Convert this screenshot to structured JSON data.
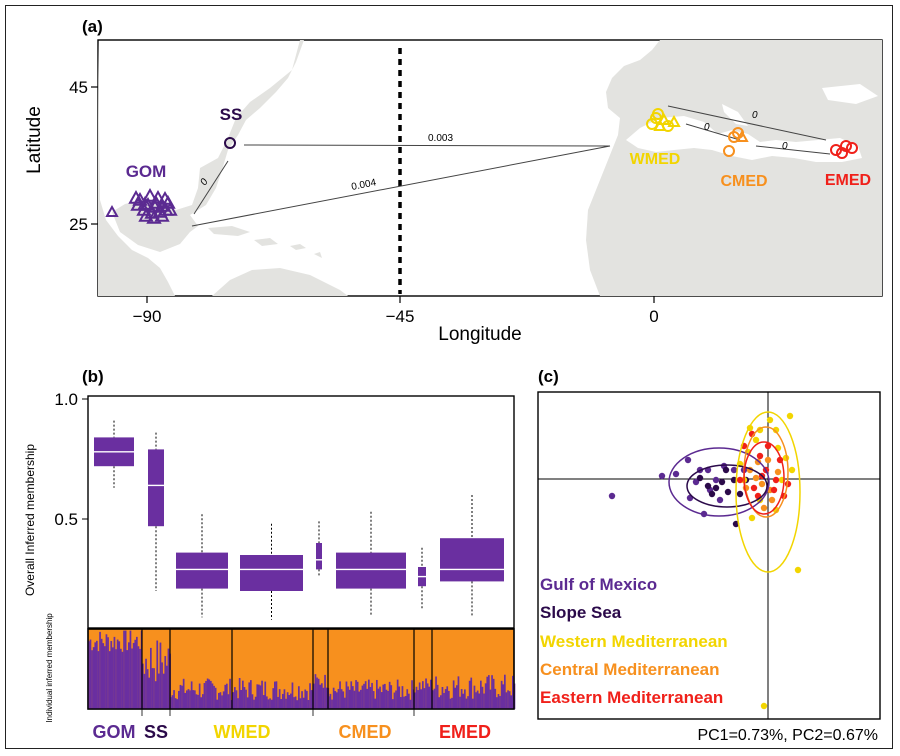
{
  "colors": {
    "gom": "#5b2a91",
    "ss": "#2b0a4a",
    "wmed": "#f2d500",
    "cmed": "#f7901e",
    "emed": "#f0201a",
    "land": "#e3e3e0",
    "box": "#6a2fa0",
    "orange_bg": "#f7901e"
  },
  "panel_a": {
    "label": "(a)",
    "xlabel": "Longitude",
    "ylabel": "Latitude",
    "xticks": [
      "−90",
      "−45",
      "0"
    ],
    "yticks": [
      "45",
      "25"
    ],
    "populations": [
      {
        "code": "GOM",
        "lon": -90,
        "lat": 27,
        "color": "#5b2a91"
      },
      {
        "code": "SS",
        "lon": -79,
        "lat": 37.5,
        "color": "#2b0a4a"
      },
      {
        "code": "WMED",
        "lon": 2,
        "lat": 38.5,
        "color": "#f2d500"
      },
      {
        "code": "CMED",
        "lon": 13,
        "lat": 36,
        "color": "#f7901e"
      },
      {
        "code": "EMED",
        "lon": 27,
        "lat": 35,
        "color": "#f0201a"
      }
    ],
    "distances": [
      {
        "label": "0",
        "from": "GOM",
        "to": "SS"
      },
      {
        "label": "0.004",
        "from": "GOM",
        "to": "WMED"
      },
      {
        "label": "0.003",
        "from": "SS",
        "to": "WMED"
      },
      {
        "label": "0",
        "from": "WMED",
        "to": "CMED"
      },
      {
        "label": "0",
        "from": "WMED",
        "to": "EMED"
      },
      {
        "label": "0",
        "from": "CMED",
        "to": "EMED"
      }
    ]
  },
  "panel_b": {
    "label": "(b)",
    "ylabel_top": "Overall Inferred membership",
    "ylabel_bottom": "Individual inferred membership",
    "yticks": [
      "1.0",
      "0.5"
    ],
    "groups": [
      "GOM",
      "SS",
      "WMED",
      "CMED",
      "EMED"
    ]
  },
  "panel_c": {
    "label": "(c)",
    "legend": [
      {
        "name": "Gulf of Mexico",
        "color": "#5b2a91"
      },
      {
        "name": "Slope Sea",
        "color": "#2b0a4a"
      },
      {
        "name": "Western Mediterranean",
        "color": "#f2d500"
      },
      {
        "name": "Central Mediterranean",
        "color": "#f7901e"
      },
      {
        "name": "Eastern Mediterranean",
        "color": "#f0201a"
      }
    ],
    "pc_label": "PC1=0.73%, PC2=0.67%"
  },
  "chart_data": [
    {
      "type": "scatter",
      "title": "(a)",
      "xlabel": "Longitude",
      "ylabel": "Latitude",
      "series": [
        {
          "name": "GOM",
          "x": [
            -90
          ],
          "y": [
            27
          ]
        },
        {
          "name": "SS",
          "x": [
            -79
          ],
          "y": [
            37.5
          ]
        },
        {
          "name": "WMED",
          "x": [
            2
          ],
          "y": [
            38.5
          ]
        },
        {
          "name": "CMED",
          "x": [
            13
          ],
          "y": [
            36
          ]
        },
        {
          "name": "EMED",
          "x": [
            27
          ],
          "y": [
            35
          ]
        }
      ]
    },
    {
      "type": "box",
      "title": "(b)",
      "ylabel": "Overall Inferred membership",
      "ylim": [
        0,
        1
      ],
      "boxes": [
        {
          "group": "GOM",
          "min": 0.63,
          "q1": 0.72,
          "median": 0.78,
          "q3": 0.84,
          "max": 0.91
        },
        {
          "group": "SS",
          "min": 0.2,
          "q1": 0.47,
          "median": 0.64,
          "q3": 0.79,
          "max": 0.86
        },
        {
          "group": "WMED",
          "min": 0.09,
          "q1": 0.21,
          "median": 0.29,
          "q3": 0.36,
          "max": 0.52
        },
        {
          "group": "WMED",
          "min": 0.08,
          "q1": 0.2,
          "median": 0.29,
          "q3": 0.35,
          "max": 0.48
        },
        {
          "group": "WMED",
          "min": 0.26,
          "q1": 0.29,
          "median": 0.33,
          "q3": 0.4,
          "max": 0.49
        },
        {
          "group": "CMED",
          "min": 0.1,
          "q1": 0.21,
          "median": 0.29,
          "q3": 0.36,
          "max": 0.53
        },
        {
          "group": "EMED",
          "min": 0.12,
          "q1": 0.22,
          "median": 0.26,
          "q3": 0.3,
          "max": 0.38
        },
        {
          "group": "EMED",
          "min": 0.09,
          "q1": 0.24,
          "median": 0.29,
          "q3": 0.42,
          "max": 0.6
        }
      ]
    },
    {
      "type": "scatter",
      "title": "(c)",
      "xlabel": "PC1=0.73%",
      "ylabel": "PC2=0.67%",
      "series": [
        {
          "name": "Gulf of Mexico"
        },
        {
          "name": "Slope Sea"
        },
        {
          "name": "Western Mediterranean"
        },
        {
          "name": "Central Mediterranean"
        },
        {
          "name": "Eastern Mediterranean"
        }
      ]
    }
  ]
}
